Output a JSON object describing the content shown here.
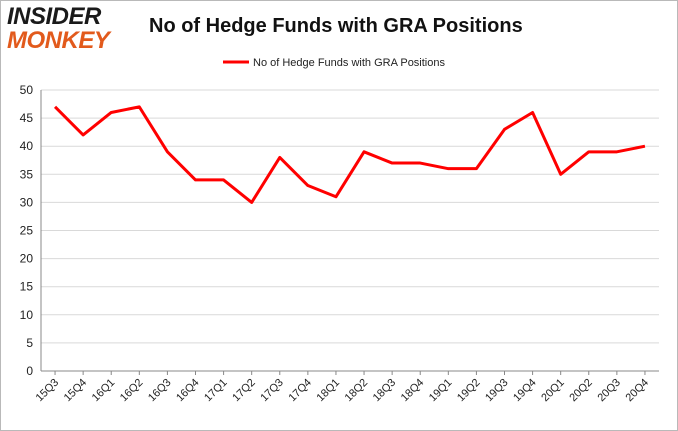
{
  "logo": {
    "line1": "INSIDER",
    "line2": "MONKEY"
  },
  "chart_data": {
    "type": "line",
    "title": "No of Hedge Funds with GRA Positions",
    "xlabel": "",
    "ylabel": "",
    "categories": [
      "15Q3",
      "15Q4",
      "16Q1",
      "16Q2",
      "16Q3",
      "16Q4",
      "17Q1",
      "17Q2",
      "17Q3",
      "17Q4",
      "18Q1",
      "18Q2",
      "18Q3",
      "18Q4",
      "19Q1",
      "19Q2",
      "19Q3",
      "19Q4",
      "20Q1",
      "20Q2",
      "20Q3",
      "20Q4"
    ],
    "series": [
      {
        "name": "No of Hedge Funds with GRA Positions",
        "color": "#ff0000",
        "values": [
          47,
          42,
          46,
          47,
          39,
          34,
          34,
          30,
          38,
          33,
          31,
          39,
          37,
          37,
          36,
          36,
          43,
          46,
          35,
          39,
          39,
          40
        ]
      }
    ],
    "ylim": [
      0,
      50
    ],
    "yticks": [
      0,
      5,
      10,
      15,
      20,
      25,
      30,
      35,
      40,
      45,
      50
    ],
    "grid": true,
    "legend": "top-center"
  }
}
